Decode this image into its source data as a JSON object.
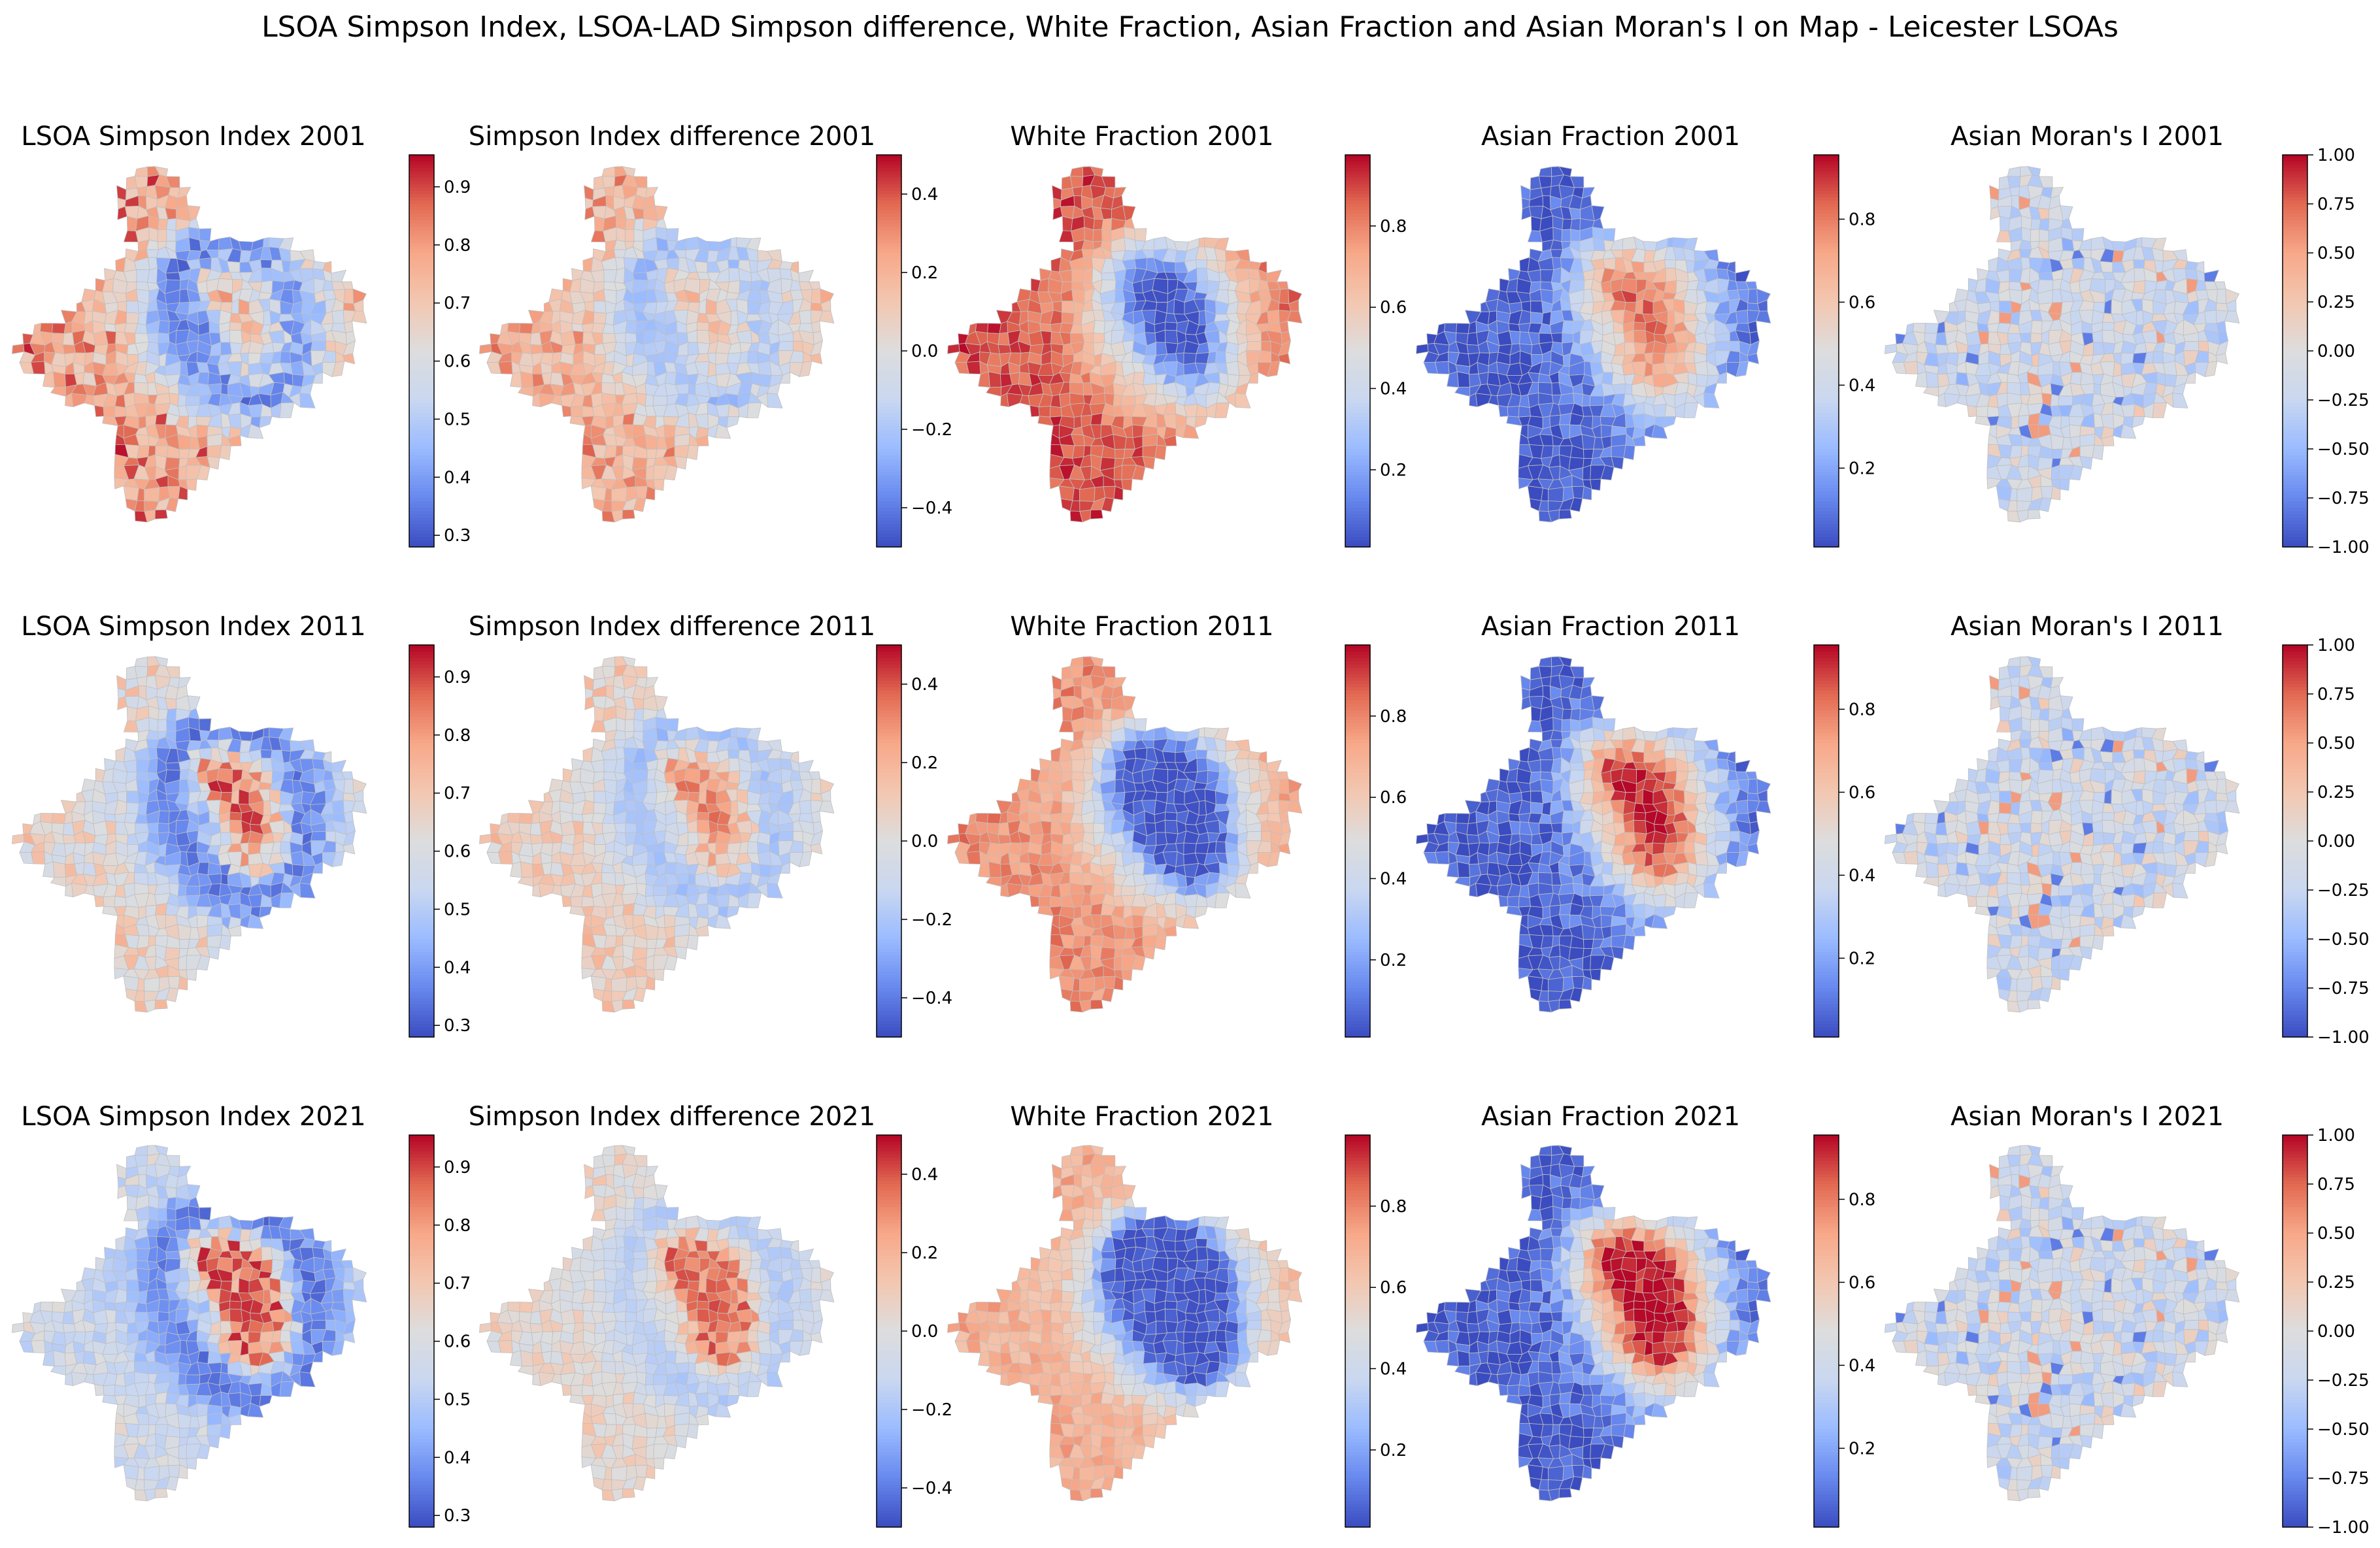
{
  "figure": {
    "title": "LSOA Simpson Index, LSOA-LAD Simpson difference, White Fraction, Asian Fraction and Asian Moran's I on Map - Leicester LSOAs",
    "colormap": "coolwarm",
    "colormap_stops": [
      "#3b4cc0",
      "#6788ee",
      "#9abbff",
      "#c9d7f0",
      "#dddddd",
      "#f3c7b1",
      "#f7a889",
      "#e26952",
      "#b40426"
    ],
    "boundary_color": "#bfbfbf"
  },
  "rows": [
    "2001",
    "2011",
    "2021"
  ],
  "columns": [
    {
      "key": "simpson",
      "title_prefix": "LSOA Simpson Index",
      "vmin": 0.28,
      "vmax": 0.955,
      "ticks": [
        0.3,
        0.4,
        0.5,
        0.6,
        0.7,
        0.8,
        0.9
      ],
      "tick_labels": [
        "0.3",
        "0.4",
        "0.5",
        "0.6",
        "0.7",
        "0.8",
        "0.9"
      ]
    },
    {
      "key": "diff",
      "title_prefix": "Simpson Index difference",
      "vmin": -0.5,
      "vmax": 0.5,
      "ticks": [
        -0.4,
        -0.2,
        0.0,
        0.2,
        0.4
      ],
      "tick_labels": [
        "−0.4",
        "−0.2",
        "0.0",
        "0.2",
        "0.4"
      ]
    },
    {
      "key": "white",
      "title_prefix": "White Fraction",
      "vmin": 0.01,
      "vmax": 0.975,
      "ticks": [
        0.2,
        0.4,
        0.6,
        0.8
      ],
      "tick_labels": [
        "0.2",
        "0.4",
        "0.6",
        "0.8"
      ]
    },
    {
      "key": "asian",
      "title_prefix": "Asian Fraction",
      "vmin": 0.01,
      "vmax": 0.955,
      "ticks": [
        0.2,
        0.4,
        0.6,
        0.8
      ],
      "tick_labels": [
        "0.2",
        "0.4",
        "0.6",
        "0.8"
      ]
    },
    {
      "key": "moran",
      "title_prefix": "Asian Moran's I",
      "vmin": -1.0,
      "vmax": 1.0,
      "ticks": [
        -1.0,
        -0.75,
        -0.5,
        -0.25,
        0.0,
        0.25,
        0.5,
        0.75,
        1.0
      ],
      "tick_labels": [
        "−1.00",
        "−0.75",
        "−0.50",
        "−0.25",
        "0.00",
        "0.25",
        "0.50",
        "0.75",
        "1.00"
      ]
    }
  ],
  "panels": [
    {
      "title": "LSOA Simpson Index 2001"
    },
    {
      "title": "Simpson Index difference 2001"
    },
    {
      "title": "White Fraction 2001"
    },
    {
      "title": "Asian Fraction 2001"
    },
    {
      "title": "Asian Moran's I 2001"
    },
    {
      "title": "LSOA Simpson Index 2011"
    },
    {
      "title": "Simpson Index difference 2011"
    },
    {
      "title": "White Fraction 2011"
    },
    {
      "title": "Asian Fraction 2011"
    },
    {
      "title": "Asian Moran's I 2011"
    },
    {
      "title": "LSOA Simpson Index 2021"
    },
    {
      "title": "Simpson Index difference 2021"
    },
    {
      "title": "White Fraction 2021"
    },
    {
      "title": "Asian Fraction 2021"
    },
    {
      "title": "Asian Moran's I 2021"
    }
  ]
}
